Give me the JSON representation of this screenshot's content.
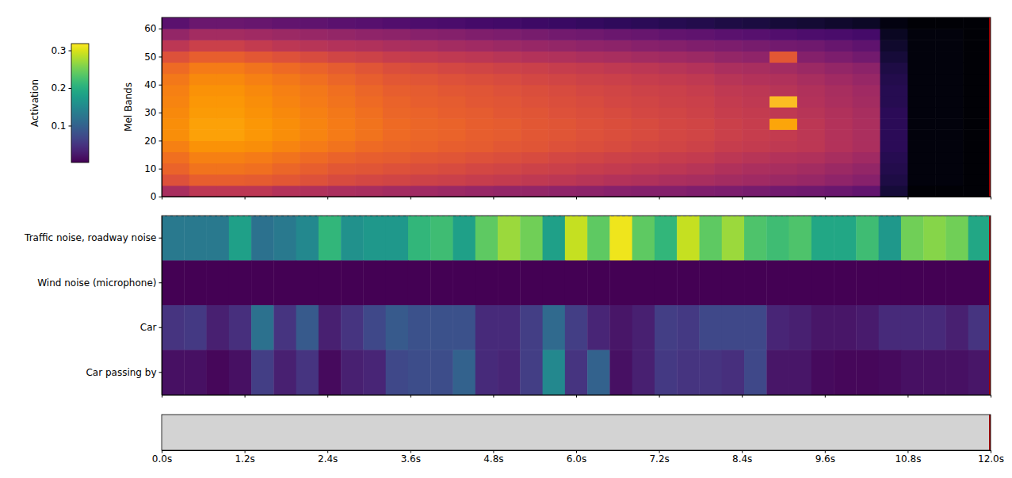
{
  "chart_data": [
    {
      "type": "heatmap",
      "y_label": "Mel Bands",
      "xlim": [
        0,
        12
      ],
      "ylim": [
        0,
        64
      ],
      "yticks": [
        0,
        10,
        20,
        30,
        40,
        50,
        60
      ],
      "xticks": [
        0,
        1.2,
        2.4,
        3.6,
        4.8,
        6,
        7.2,
        8.4,
        9.6,
        10.8,
        12
      ],
      "tick_labels": "y",
      "cells": [
        [
          0.45,
          0.5,
          0.5,
          0.5,
          0.48,
          0.47,
          0.46,
          0.45,
          0.44,
          0.43,
          0.42,
          0.41,
          0.4,
          0.4,
          0.39,
          0.38,
          0.37,
          0.36,
          0.36,
          0.35,
          0.34,
          0.33,
          0.32,
          0.31,
          0.3,
          0.28,
          0.1,
          0.01,
          0.01,
          0.01
        ],
        [
          0.6,
          0.64,
          0.64,
          0.63,
          0.62,
          0.6,
          0.58,
          0.57,
          0.56,
          0.55,
          0.54,
          0.53,
          0.52,
          0.51,
          0.5,
          0.49,
          0.48,
          0.47,
          0.46,
          0.45,
          0.44,
          0.43,
          0.42,
          0.41,
          0.39,
          0.37,
          0.12,
          0.02,
          0.02,
          0.01
        ],
        [
          0.65,
          0.69,
          0.69,
          0.68,
          0.66,
          0.64,
          0.62,
          0.61,
          0.6,
          0.59,
          0.58,
          0.57,
          0.56,
          0.55,
          0.54,
          0.53,
          0.52,
          0.51,
          0.5,
          0.49,
          0.47,
          0.46,
          0.45,
          0.44,
          0.42,
          0.4,
          0.13,
          0.02,
          0.02,
          0.01
        ],
        [
          0.68,
          0.72,
          0.72,
          0.71,
          0.69,
          0.67,
          0.65,
          0.64,
          0.63,
          0.62,
          0.61,
          0.6,
          0.59,
          0.58,
          0.57,
          0.56,
          0.55,
          0.54,
          0.53,
          0.52,
          0.5,
          0.49,
          0.48,
          0.47,
          0.45,
          0.43,
          0.14,
          0.02,
          0.02,
          0.01
        ],
        [
          0.72,
          0.76,
          0.76,
          0.75,
          0.73,
          0.71,
          0.69,
          0.67,
          0.66,
          0.65,
          0.64,
          0.63,
          0.62,
          0.61,
          0.6,
          0.59,
          0.58,
          0.57,
          0.56,
          0.55,
          0.53,
          0.52,
          0.51,
          0.5,
          0.48,
          0.46,
          0.15,
          0.02,
          0.02,
          0.01
        ],
        [
          0.75,
          0.79,
          0.79,
          0.77,
          0.75,
          0.73,
          0.71,
          0.69,
          0.67,
          0.66,
          0.65,
          0.64,
          0.63,
          0.62,
          0.61,
          0.6,
          0.59,
          0.58,
          0.57,
          0.56,
          0.54,
          0.53,
          0.52,
          0.5,
          0.48,
          0.46,
          0.15,
          0.02,
          0.02,
          0.01
        ],
        [
          0.75,
          0.79,
          0.79,
          0.77,
          0.75,
          0.73,
          0.71,
          0.69,
          0.67,
          0.66,
          0.65,
          0.64,
          0.63,
          0.62,
          0.61,
          0.6,
          0.59,
          0.58,
          0.57,
          0.56,
          0.54,
          0.53,
          0.8,
          0.5,
          0.48,
          0.46,
          0.15,
          0.02,
          0.02,
          0.01
        ],
        [
          0.74,
          0.78,
          0.78,
          0.76,
          0.74,
          0.72,
          0.7,
          0.68,
          0.66,
          0.65,
          0.64,
          0.63,
          0.62,
          0.61,
          0.6,
          0.59,
          0.58,
          0.57,
          0.56,
          0.55,
          0.53,
          0.52,
          0.51,
          0.49,
          0.47,
          0.45,
          0.15,
          0.02,
          0.02,
          0.01
        ],
        [
          0.73,
          0.77,
          0.77,
          0.75,
          0.73,
          0.71,
          0.69,
          0.67,
          0.65,
          0.64,
          0.63,
          0.62,
          0.61,
          0.6,
          0.59,
          0.58,
          0.57,
          0.56,
          0.55,
          0.54,
          0.52,
          0.51,
          0.85,
          0.48,
          0.46,
          0.44,
          0.14,
          0.02,
          0.02,
          0.01
        ],
        [
          0.72,
          0.76,
          0.76,
          0.74,
          0.72,
          0.7,
          0.68,
          0.66,
          0.64,
          0.63,
          0.62,
          0.61,
          0.6,
          0.59,
          0.58,
          0.57,
          0.56,
          0.55,
          0.54,
          0.53,
          0.51,
          0.5,
          0.49,
          0.47,
          0.45,
          0.43,
          0.14,
          0.02,
          0.02,
          0.01
        ],
        [
          0.7,
          0.74,
          0.74,
          0.72,
          0.7,
          0.68,
          0.66,
          0.64,
          0.62,
          0.61,
          0.6,
          0.59,
          0.58,
          0.57,
          0.56,
          0.55,
          0.54,
          0.53,
          0.52,
          0.51,
          0.49,
          0.48,
          0.47,
          0.45,
          0.43,
          0.41,
          0.13,
          0.02,
          0.02,
          0.01
        ],
        [
          0.67,
          0.71,
          0.71,
          0.69,
          0.67,
          0.65,
          0.63,
          0.61,
          0.59,
          0.58,
          0.57,
          0.56,
          0.55,
          0.54,
          0.53,
          0.52,
          0.51,
          0.5,
          0.49,
          0.48,
          0.46,
          0.45,
          0.44,
          0.42,
          0.4,
          0.38,
          0.12,
          0.02,
          0.02,
          0.01
        ],
        [
          0.6,
          0.64,
          0.64,
          0.62,
          0.6,
          0.58,
          0.56,
          0.55,
          0.53,
          0.52,
          0.51,
          0.5,
          0.49,
          0.48,
          0.47,
          0.46,
          0.45,
          0.44,
          0.43,
          0.42,
          0.4,
          0.39,
          0.62,
          0.36,
          0.34,
          0.32,
          0.1,
          0.02,
          0.02,
          0.01
        ],
        [
          0.5,
          0.54,
          0.54,
          0.52,
          0.5,
          0.49,
          0.48,
          0.47,
          0.46,
          0.45,
          0.44,
          0.43,
          0.42,
          0.41,
          0.4,
          0.39,
          0.38,
          0.37,
          0.36,
          0.35,
          0.34,
          0.33,
          0.32,
          0.31,
          0.29,
          0.27,
          0.08,
          0.02,
          0.02,
          0.01
        ],
        [
          0.4,
          0.44,
          0.44,
          0.43,
          0.42,
          0.41,
          0.4,
          0.39,
          0.38,
          0.37,
          0.36,
          0.35,
          0.34,
          0.33,
          0.32,
          0.31,
          0.3,
          0.29,
          0.28,
          0.27,
          0.26,
          0.25,
          0.24,
          0.23,
          0.22,
          0.21,
          0.06,
          0.02,
          0.02,
          0.01
        ],
        [
          0.26,
          0.3,
          0.3,
          0.29,
          0.28,
          0.27,
          0.26,
          0.25,
          0.24,
          0.23,
          0.22,
          0.21,
          0.2,
          0.19,
          0.18,
          0.17,
          0.16,
          0.15,
          0.14,
          0.13,
          0.12,
          0.11,
          0.1,
          0.09,
          0.08,
          0.07,
          0.03,
          0.01,
          0.01,
          0.01
        ]
      ]
    },
    {
      "type": "heatmap",
      "categories": [
        "Traffic noise, roadway noise",
        "Wind noise (microphone)",
        "Car",
        "Car passing by"
      ],
      "xlim": [
        0,
        12
      ],
      "xticks": [
        0,
        1.2,
        2.4,
        3.6,
        4.8,
        6,
        7.2,
        8.4,
        9.6,
        10.8,
        12
      ],
      "tick_labels": "y",
      "cells": [
        [
          0.13,
          0.13,
          0.13,
          0.18,
          0.12,
          0.13,
          0.15,
          0.21,
          0.16,
          0.17,
          0.17,
          0.21,
          0.22,
          0.18,
          0.24,
          0.27,
          0.25,
          0.18,
          0.29,
          0.24,
          0.31,
          0.24,
          0.21,
          0.29,
          0.24,
          0.27,
          0.23,
          0.22,
          0.23,
          0.19,
          0.19,
          0.22,
          0.17,
          0.25,
          0.26,
          0.25,
          0.19
        ],
        [
          0.003,
          0.003,
          0.003,
          0.003,
          0.003,
          0.003,
          0.003,
          0.003,
          0.003,
          0.003,
          0.003,
          0.003,
          0.003,
          0.003,
          0.003,
          0.003,
          0.003,
          0.003,
          0.003,
          0.003,
          0.003,
          0.003,
          0.003,
          0.003,
          0.003,
          0.003,
          0.003,
          0.003,
          0.003,
          0.003,
          0.003,
          0.003,
          0.003,
          0.003,
          0.003,
          0.003,
          0.003
        ],
        [
          0.05,
          0.055,
          0.03,
          0.045,
          0.12,
          0.05,
          0.09,
          0.03,
          0.05,
          0.07,
          0.09,
          0.08,
          0.08,
          0.08,
          0.04,
          0.04,
          0.06,
          0.11,
          0.06,
          0.035,
          0.02,
          0.03,
          0.06,
          0.055,
          0.07,
          0.07,
          0.07,
          0.035,
          0.03,
          0.02,
          0.02,
          0.025,
          0.04,
          0.04,
          0.04,
          0.03,
          0.05
        ],
        [
          0.015,
          0.015,
          0.008,
          0.015,
          0.06,
          0.03,
          0.05,
          0.01,
          0.03,
          0.035,
          0.07,
          0.075,
          0.075,
          0.1,
          0.04,
          0.035,
          0.06,
          0.15,
          0.05,
          0.1,
          0.015,
          0.03,
          0.055,
          0.05,
          0.05,
          0.045,
          0.07,
          0.02,
          0.02,
          0.01,
          0.008,
          0.008,
          0.01,
          0.015,
          0.015,
          0.015,
          0.02
        ]
      ],
      "colorbar": {
        "label": "Activation",
        "range": [
          0.002,
          0.318
        ],
        "ticks": [
          0.1,
          0.2,
          0.3
        ]
      }
    },
    {
      "type": "timeline",
      "xlim": [
        0,
        12
      ],
      "xticks": [
        {
          "value": 0,
          "label": "0.0s"
        },
        {
          "value": 1.2,
          "label": "1.2s"
        },
        {
          "value": 2.4,
          "label": "2.4s"
        },
        {
          "value": 3.6,
          "label": "3.6s"
        },
        {
          "value": 4.8,
          "label": "4.8s"
        },
        {
          "value": 6,
          "label": "6.0s"
        },
        {
          "value": 7.2,
          "label": "7.2s"
        },
        {
          "value": 8.4,
          "label": "8.4s"
        },
        {
          "value": 9.6,
          "label": "9.6s"
        },
        {
          "value": 10.8,
          "label": "10.8s"
        },
        {
          "value": 12,
          "label": "12.0s"
        }
      ],
      "tick_labels": "x"
    }
  ]
}
